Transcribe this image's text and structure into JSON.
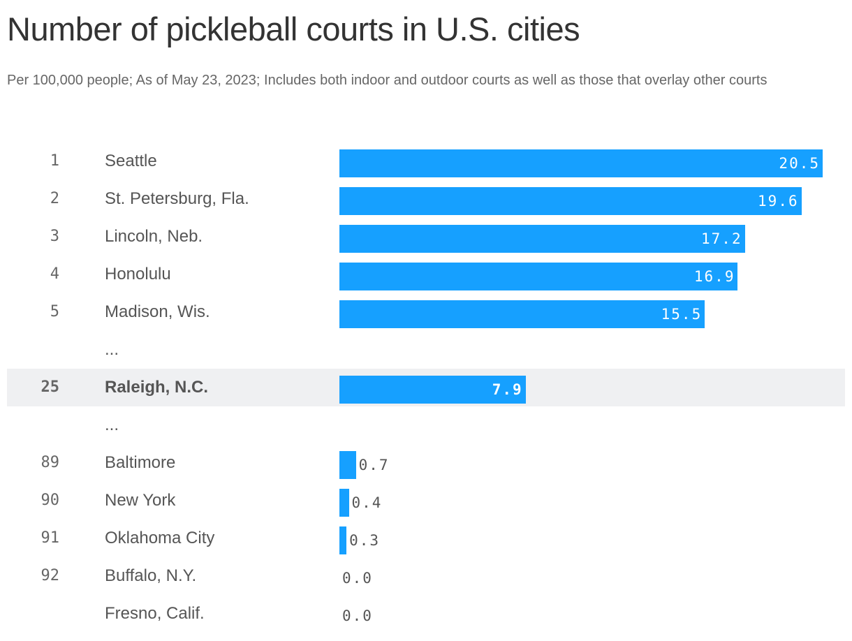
{
  "chart_data": {
    "type": "bar",
    "title": "Number of pickleball courts in U.S. cities",
    "subtitle": "Per 100,000 people; As of May 23, 2023; Includes both indoor and outdoor courts as well as those that overlay other courts",
    "xlim": [
      0,
      20.5
    ],
    "ellipsis": "...",
    "rows": [
      {
        "rank": "1",
        "name": "Seattle",
        "value": 20.5,
        "label": "20.5"
      },
      {
        "rank": "2",
        "name": "St. Petersburg, Fla.",
        "value": 19.6,
        "label": "19.6"
      },
      {
        "rank": "3",
        "name": "Lincoln, Neb.",
        "value": 17.2,
        "label": "17.2"
      },
      {
        "rank": "4",
        "name": "Honolulu",
        "value": 16.9,
        "label": "16.9"
      },
      {
        "rank": "5",
        "name": "Madison, Wis.",
        "value": 15.5,
        "label": "15.5"
      },
      {
        "ellipsis": true
      },
      {
        "rank": "25",
        "name": "Raleigh, N.C.",
        "value": 7.9,
        "label": "7.9",
        "highlight": true
      },
      {
        "ellipsis": true
      },
      {
        "rank": "89",
        "name": "Baltimore",
        "value": 0.7,
        "label": "0.7"
      },
      {
        "rank": "90",
        "name": "New York",
        "value": 0.4,
        "label": "0.4"
      },
      {
        "rank": "91",
        "name": "Oklahoma City",
        "value": 0.3,
        "label": "0.3"
      },
      {
        "rank": "92",
        "name": "Buffalo, N.Y.",
        "value": 0.0,
        "label": "0.0"
      },
      {
        "rank": "",
        "name": "Fresno, Calif.",
        "value": 0.0,
        "label": "0.0"
      }
    ]
  },
  "colors": {
    "bar": "#16a0ff",
    "highlight_bg": "#eff0f2"
  }
}
